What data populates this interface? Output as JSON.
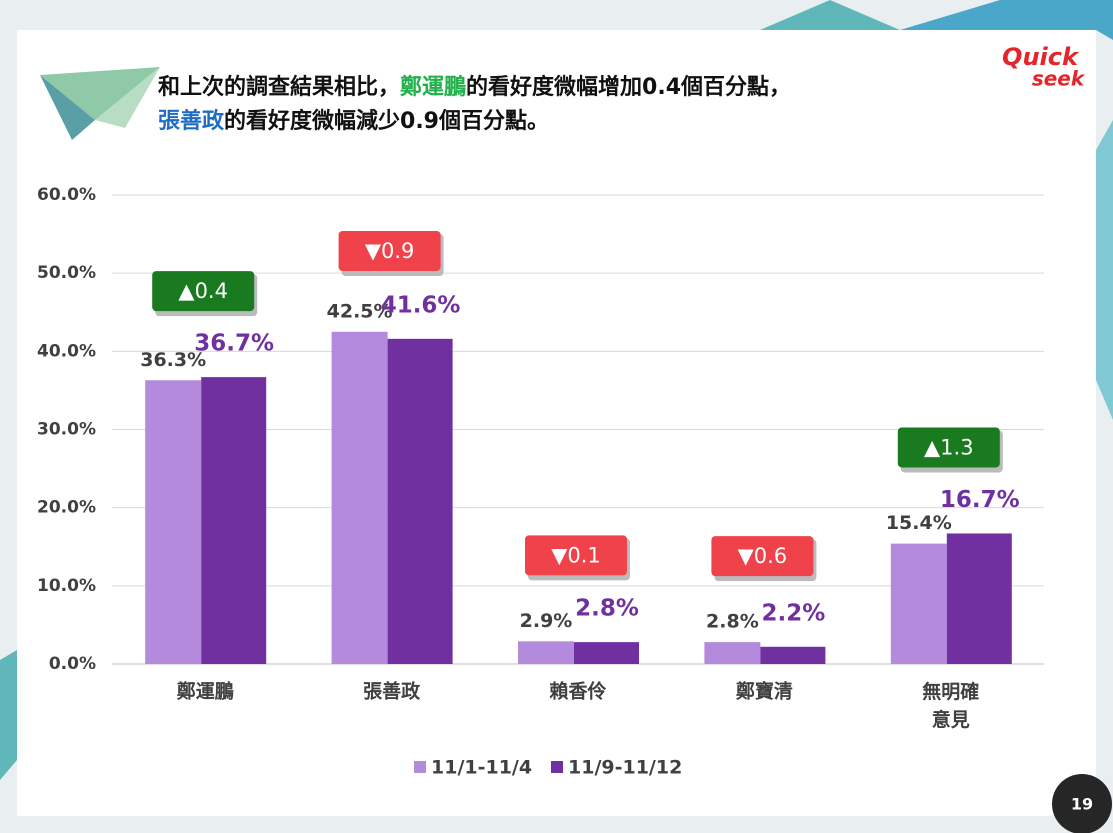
{
  "title_lines": [
    [
      {
        "text": "和上次的調查結果相比，"
      },
      {
        "text": "鄭運鵬",
        "color": "#21b04b"
      },
      {
        "text": "的看好度微幅增加0.4個百分點，"
      }
    ],
    [
      {
        "text": "張善政",
        "color": "#1f6dc2"
      },
      {
        "text": "的看好度微幅減少0.9個百分點。"
      }
    ]
  ],
  "logo": [
    "Quick",
    "seek"
  ],
  "page_number": "19",
  "chart_data": {
    "type": "bar",
    "categories": [
      "鄭運鵬",
      "張善政",
      "賴香伶",
      "鄭寶清",
      "無明確\n意見"
    ],
    "series": [
      {
        "name": "11/1-11/4",
        "color": "#b48add",
        "values": [
          36.3,
          42.5,
          2.9,
          2.8,
          15.4
        ],
        "value_labels": [
          "36.3%",
          "42.5%",
          "2.9%",
          "2.8%",
          "15.4%"
        ]
      },
      {
        "name": "11/9-11/12",
        "color": "#7030a0",
        "values": [
          36.7,
          41.6,
          2.8,
          2.2,
          16.7
        ],
        "value_labels": [
          "36.7%",
          "41.6%",
          "2.8%",
          "2.2%",
          "16.7%"
        ]
      }
    ],
    "annotations": [
      {
        "text": "▲0.4",
        "color": "#1a7a1f"
      },
      {
        "text": "▼0.9",
        "color": "#f0424a"
      },
      {
        "text": "▼0.1",
        "color": "#f0424a"
      },
      {
        "text": "▼0.6",
        "color": "#f0424a"
      },
      {
        "text": "▲1.3",
        "color": "#1a7a1f"
      }
    ],
    "ylim": [
      0,
      60
    ],
    "yticks": [
      {
        "value": 0,
        "label": "0.0%"
      },
      {
        "value": 10,
        "label": "10.0%"
      },
      {
        "value": 20,
        "label": "20.0%"
      },
      {
        "value": 30,
        "label": "30.0%"
      },
      {
        "value": 40,
        "label": "40.0%"
      },
      {
        "value": 50,
        "label": "50.0%"
      },
      {
        "value": 60,
        "label": "60.0%"
      }
    ],
    "grid": true,
    "legend": "bottom"
  }
}
